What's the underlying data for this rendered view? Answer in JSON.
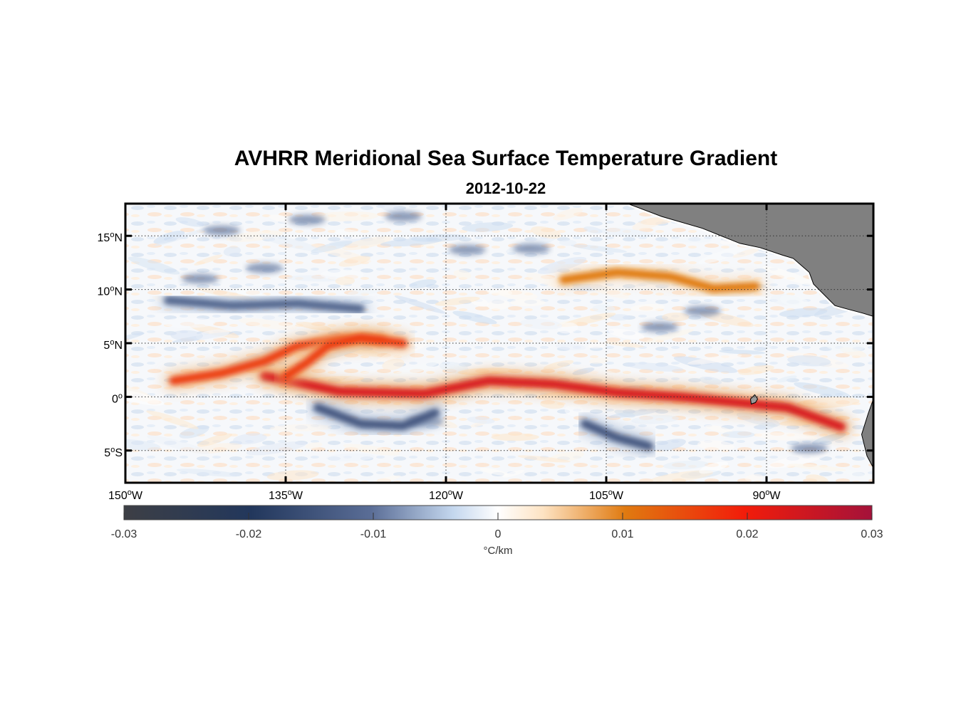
{
  "chart_data": {
    "type": "heatmap",
    "title": "AVHRR Meridional Sea Surface Temperature Gradient",
    "subtitle": "2012-10-22",
    "variable": "Meridional SST gradient",
    "units": "°C/km",
    "lon_range": [
      -150,
      -80
    ],
    "lat_range": [
      -8,
      18
    ],
    "x_ticks": [
      {
        "value": -150,
        "deg": "150",
        "hem": "W"
      },
      {
        "value": -135,
        "deg": "135",
        "hem": "W"
      },
      {
        "value": -120,
        "deg": "120",
        "hem": "W"
      },
      {
        "value": -105,
        "deg": "105",
        "hem": "W"
      },
      {
        "value": -90,
        "deg": "90",
        "hem": "W"
      }
    ],
    "y_ticks": [
      {
        "value": 15,
        "deg": "15",
        "hem": "N"
      },
      {
        "value": 10,
        "deg": "10",
        "hem": "N"
      },
      {
        "value": 5,
        "deg": "5",
        "hem": "N"
      },
      {
        "value": 0,
        "deg": "0",
        "hem": ""
      },
      {
        "value": -5,
        "deg": "5",
        "hem": "S"
      }
    ],
    "colorbar": {
      "range": [
        -0.03,
        0.03
      ],
      "ticks": [
        -0.03,
        -0.02,
        -0.01,
        0,
        0.01,
        0.02,
        0.03
      ],
      "tick_labels": [
        "-0.03",
        "-0.02",
        "-0.01",
        "0",
        "0.01",
        "0.02",
        "0.03"
      ],
      "label": "°C/km",
      "colors": [
        "#3d3f45",
        "#22375c",
        "#5a6d96",
        "#c4d7ee",
        "#ffffff",
        "#fde3c3",
        "#e07a10",
        "#f21c0a",
        "#a4123a"
      ]
    },
    "features": [
      {
        "name": "equatorial-warm-front",
        "value": 0.025,
        "path": [
          [
            -137,
            2
          ],
          [
            -130,
            0.5
          ],
          [
            -122,
            0.3
          ],
          [
            -116,
            1.5
          ],
          [
            -110,
            1.2
          ],
          [
            -104,
            0.4
          ],
          [
            -98,
            0
          ],
          [
            -93,
            -0.5
          ],
          [
            -88,
            -1
          ],
          [
            -83,
            -2.8
          ]
        ]
      },
      {
        "name": "tropical-instability-front-1",
        "value": 0.02,
        "path": [
          [
            -145.5,
            1.5
          ],
          [
            -141,
            2.2
          ],
          [
            -137,
            3.3
          ],
          [
            -134,
            4.7
          ],
          [
            -130,
            5.4
          ],
          [
            -126,
            5.3
          ]
        ]
      },
      {
        "name": "tropical-instability-front-2",
        "value": 0.02,
        "path": [
          [
            -135,
            1.9
          ],
          [
            -133,
            3.2
          ],
          [
            -131,
            4.8
          ],
          [
            -128,
            5.5
          ],
          [
            -124,
            5
          ]
        ]
      },
      {
        "name": "itcz-front",
        "value": 0.015,
        "path": [
          [
            -109,
            10.9
          ],
          [
            -104,
            11.6
          ],
          [
            -99,
            11.2
          ],
          [
            -95,
            10.1
          ],
          [
            -91,
            10.3
          ]
        ]
      },
      {
        "name": "south-cold-band-1",
        "value": -0.018,
        "path": [
          [
            -132,
            -1
          ],
          [
            -128,
            -2.5
          ],
          [
            -124,
            -2.7
          ],
          [
            -121,
            -1.5
          ]
        ]
      },
      {
        "name": "south-cold-band-2",
        "value": -0.018,
        "path": [
          [
            -107,
            -2.5
          ],
          [
            -104,
            -3.8
          ],
          [
            -101,
            -4.6
          ]
        ]
      },
      {
        "name": "north-cold-band",
        "value": -0.016,
        "path": [
          [
            -146,
            9
          ],
          [
            -140,
            8.5
          ],
          [
            -134,
            8.7
          ],
          [
            -128,
            8.2
          ]
        ]
      }
    ],
    "land_regions": [
      "Central America",
      "South America (Ecuador coast)",
      "Galapagos Islands"
    ]
  }
}
